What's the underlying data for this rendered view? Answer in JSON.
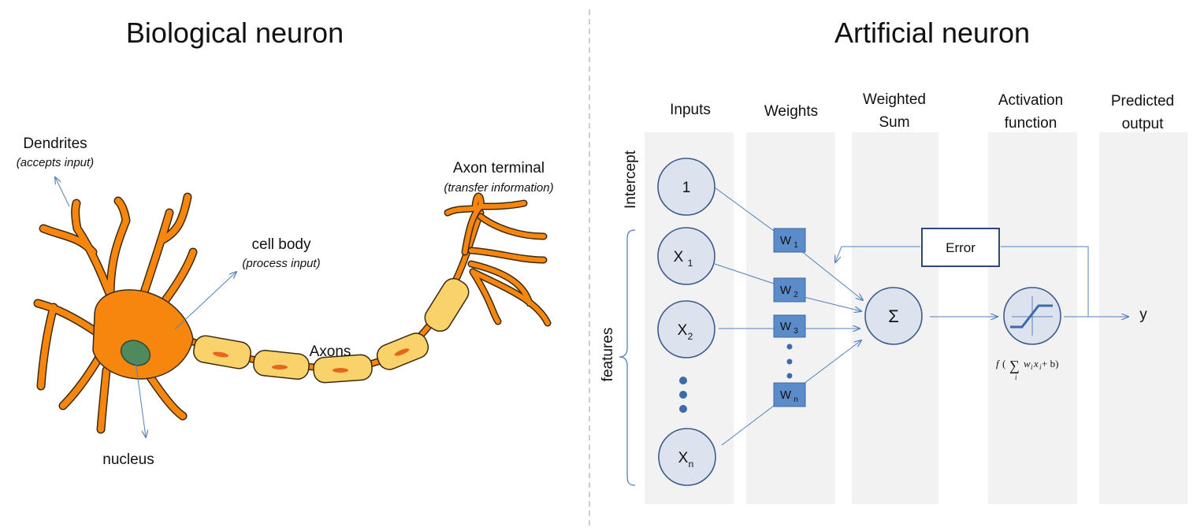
{
  "left": {
    "title": "Biological neuron",
    "dendrites": {
      "label": "Dendrites",
      "note": "(accepts input)"
    },
    "cell_body": {
      "label": "cell body",
      "note": "(process input)"
    },
    "axon_terminal": {
      "label": "Axon terminal",
      "note": "(transfer information)"
    },
    "axons": {
      "label": "Axons"
    },
    "nucleus": {
      "label": "nucleus"
    }
  },
  "right": {
    "title": "Artificial neuron",
    "columns": {
      "inputs": "Inputs",
      "weights": "Weights",
      "weighted_sum_1": "Weighted",
      "weighted_sum_2": "Sum",
      "activation_1": "Activation",
      "activation_2": "function",
      "predicted_1": "Predicted",
      "predicted_2": "output"
    },
    "side_labels": {
      "intercept": "Intercept",
      "features": "features"
    },
    "inputs": {
      "one": "1",
      "x": "X",
      "x1_sub": "1",
      "x2_sub": "2",
      "xn_sub": "n"
    },
    "weights": {
      "w": "W",
      "w1_sub": "1",
      "w2_sub": "2",
      "w3_sub": "3",
      "wn_sub": "n"
    },
    "sum_symbol": "Σ",
    "error_label": "Error",
    "output_label": "y",
    "formula": {
      "f": "f",
      "open": "(",
      "sum": "∑",
      "i": "i",
      "body": "w",
      "wsub": "i",
      "x": "x",
      "xsub": "i",
      "tail": " + b)"
    }
  },
  "colors": {
    "neuron_fill": "#f7860f",
    "neuron_stroke": "#3a2a10",
    "myelin": "#f9d26a",
    "nucleus": "#4f8a5e",
    "panel": "#f2f2f2",
    "node_fill": "#dce3ee",
    "node_stroke": "#3d5a8a",
    "weight_box": "#5b8cc9",
    "arrow": "#4f81bd"
  }
}
